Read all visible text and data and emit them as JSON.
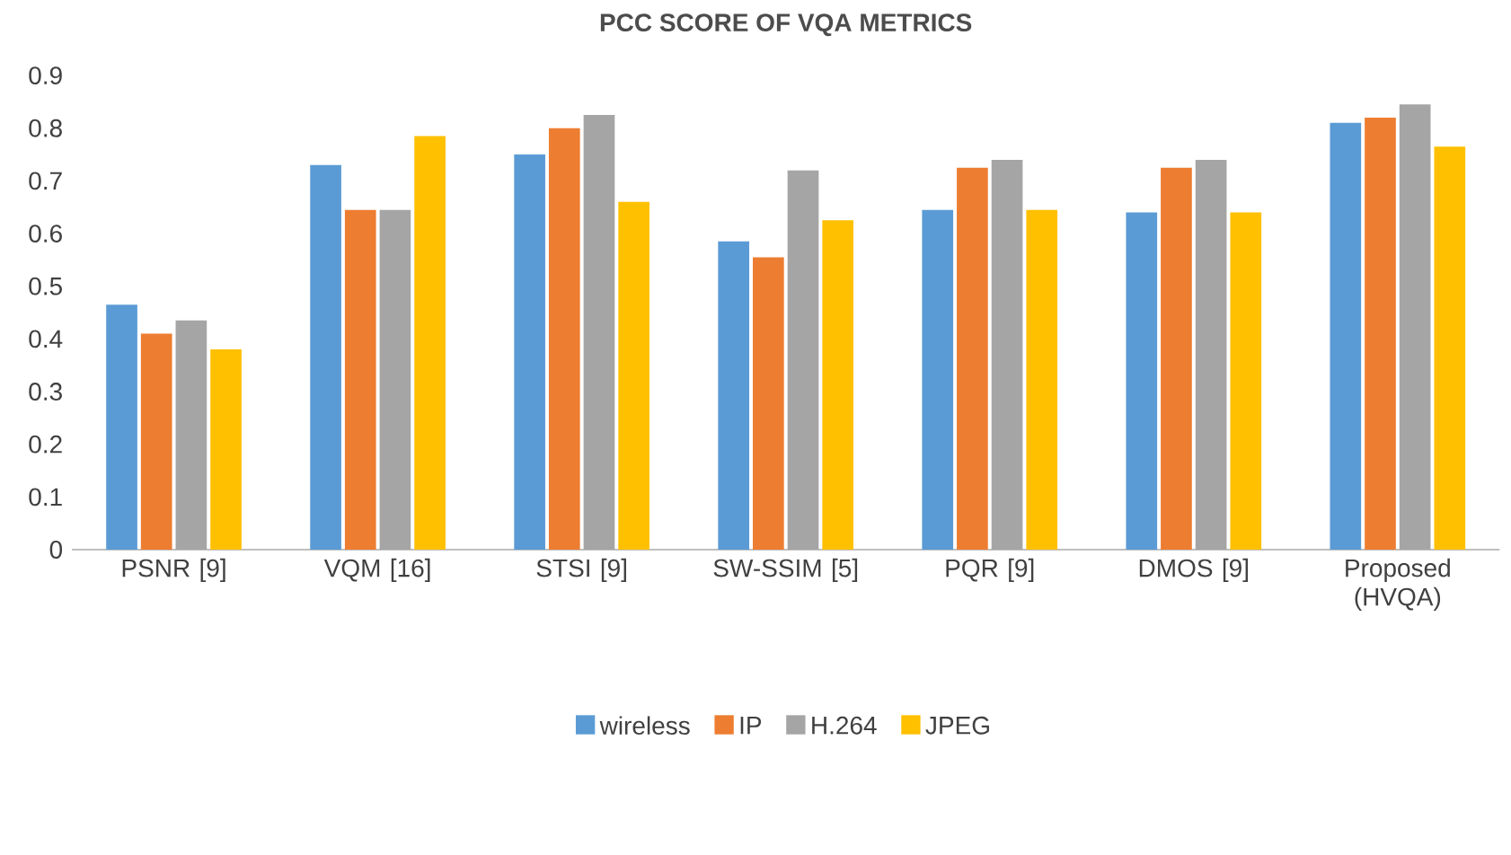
{
  "chart_data": {
    "type": "bar",
    "title": "PCC SCORE OF VQA METRICS",
    "categories": [
      "PSNR [9]",
      "VQM [16]",
      "STSI [9]",
      "SW-SSIM [5]",
      "PQR [9]",
      "DMOS [9]",
      "Proposed (HVQA)"
    ],
    "series": [
      {
        "name": "wireless",
        "color": "#5b9bd5",
        "values": [
          0.465,
          0.73,
          0.75,
          0.585,
          0.645,
          0.64,
          0.81
        ]
      },
      {
        "name": "IP",
        "color": "#ed7d31",
        "values": [
          0.41,
          0.645,
          0.8,
          0.555,
          0.725,
          0.725,
          0.82
        ]
      },
      {
        "name": "H.264",
        "color": "#a5a5a5",
        "values": [
          0.435,
          0.645,
          0.825,
          0.72,
          0.74,
          0.74,
          0.845
        ]
      },
      {
        "name": "JPEG",
        "color": "#ffc000",
        "values": [
          0.38,
          0.785,
          0.66,
          0.625,
          0.645,
          0.64,
          0.765
        ]
      }
    ],
    "ylim": [
      0,
      0.9
    ],
    "yticks": [
      0,
      0.1,
      0.2,
      0.3,
      0.4,
      0.5,
      0.6,
      0.7,
      0.8,
      0.9
    ],
    "grid": false,
    "legend": "bottom"
  }
}
